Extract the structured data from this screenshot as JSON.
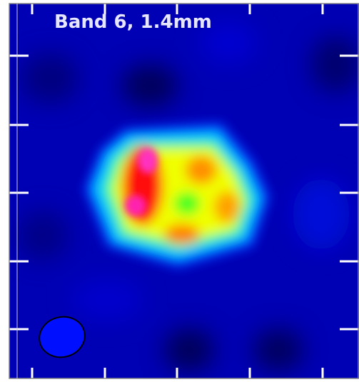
{
  "panel": {
    "label": "Band 6, 1.4mm"
  }
}
